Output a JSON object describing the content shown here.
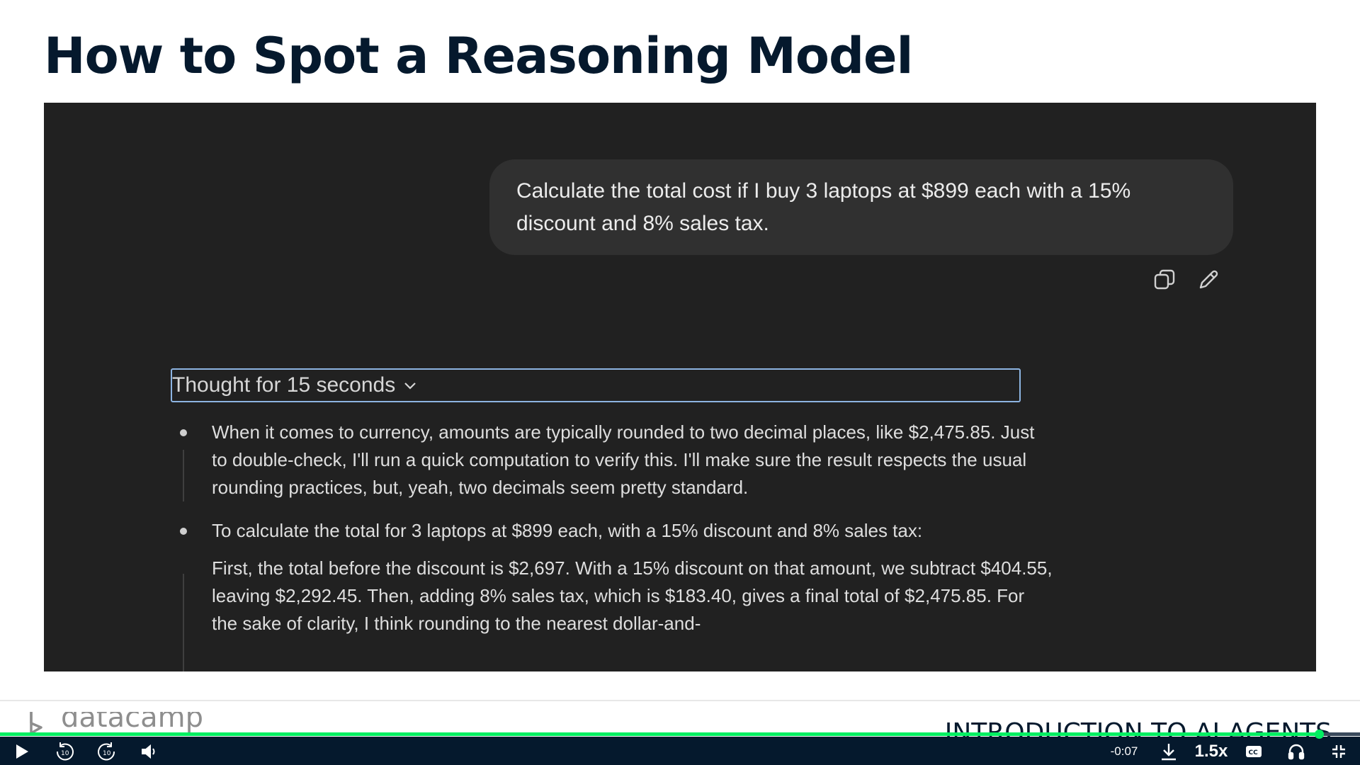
{
  "slide": {
    "title": "How to Spot a Reasoning Model"
  },
  "chat": {
    "user_message": "Calculate the total cost if I buy 3 laptops at $899 each with a 15% discount and 8% sales tax.",
    "actions": [
      "copy-icon",
      "edit-icon"
    ],
    "thought_label": "Thought for 15 seconds",
    "reasoning_steps": [
      {
        "text": "When it comes to currency, amounts are typically rounded to two decimal places, like $2,475.85. Just to double-check, I'll run a quick computation to verify this. I'll make sure the result respects the usual rounding practices, but, yeah, two decimals seem pretty standard."
      },
      {
        "text": "To calculate the total for 3 laptops at $899 each, with a 15% discount and 8% sales tax:",
        "detail": "First, the total before the discount is $2,697. With a 15% discount on that amount, we subtract $404.55, leaving $2,292.45. Then, adding 8% sales tax, which is $183.40, gives a final total of $2,475.85. For the sake of clarity, I think rounding to the nearest dollar-and-"
      }
    ]
  },
  "footer": {
    "brand": "datacamp",
    "course": "INTRODUCTION TO AI AGENTS"
  },
  "player": {
    "time_remaining": "-0:07",
    "speed": "1.5x",
    "progress": 0.97,
    "accent_color": "#03ef62",
    "controls": [
      "play-icon",
      "rewind-10-icon",
      "forward-10-icon",
      "volume-icon",
      "download-icon",
      "captions-icon",
      "headphones-icon",
      "exit-fullscreen-icon"
    ]
  }
}
